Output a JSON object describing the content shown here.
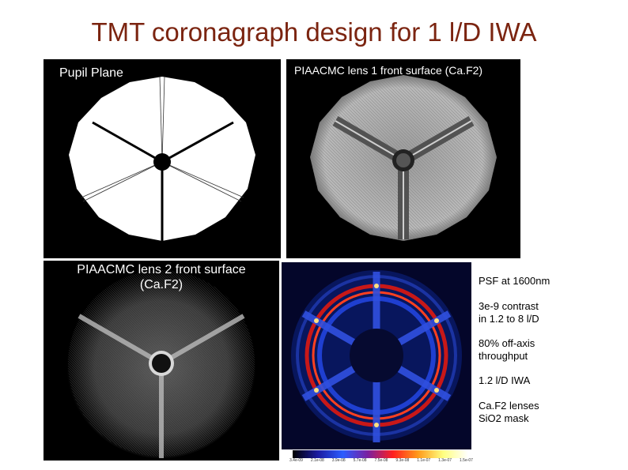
{
  "slide": {
    "title": "TMT coronagraph design for 1 l/D IWA"
  },
  "panels": {
    "pupil": {
      "label": "Pupil Plane"
    },
    "lens1": {
      "label": "PIAACMC lens 1 front surface (Ca.F2)"
    },
    "lens2": {
      "label_line1": "PIAACMC lens 2 front surface",
      "label_line2": "(Ca.F2)"
    },
    "psf": {
      "colorbar_ticks": [
        "3.4e-09",
        "2.1e-08",
        "3.9e-08",
        "5.7e-08",
        "7.5e-08",
        "9.3e-08",
        "1.1e-07",
        "1.3e-07",
        "1.5e-07"
      ]
    }
  },
  "notes": {
    "psf": "PSF at 1600nm",
    "contrast_line1": "3e-9 contrast",
    "contrast_line2": "in 1.2 to 8 l/D",
    "throughput_line1": "80% off-axis",
    "throughput_line2": "throughput",
    "iwa": "1.2 l/D IWA",
    "lenses_line1": "Ca.F2 lenses",
    "lenses_line2": "SiO2 mask"
  }
}
